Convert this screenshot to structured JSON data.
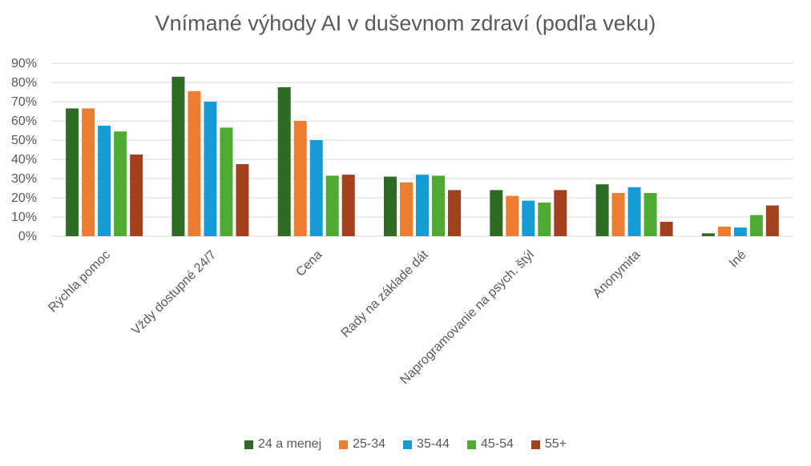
{
  "chart_data": {
    "type": "bar",
    "title": "Vnímané výhody AI v duševnom zdraví (podľa veku)",
    "categories": [
      "Rýchla pomoc",
      "Vždy dostupné 24/7",
      "Cena",
      "Rady na základe dát",
      "Naprogramovanie na psych. štýl",
      "Anonymita",
      "Iné"
    ],
    "y_ticks": [
      "0%",
      "10%",
      "20%",
      "30%",
      "40%",
      "50%",
      "60%",
      "70%",
      "80%",
      "90%"
    ],
    "ylim": [
      0,
      90
    ],
    "grid": true,
    "legend_position": "bottom",
    "series": [
      {
        "name": "24 a menej",
        "color": "#2e6b25",
        "values": [
          66.5,
          83,
          77.5,
          31,
          24,
          27,
          1.5
        ]
      },
      {
        "name": "25-34",
        "color": "#ed7d31",
        "values": [
          66.5,
          75.5,
          60,
          28,
          21,
          22.5,
          5
        ]
      },
      {
        "name": "35-44",
        "color": "#159bd6",
        "values": [
          57.5,
          70,
          50,
          32,
          18.5,
          25.5,
          4.5
        ]
      },
      {
        "name": "45-54",
        "color": "#4eaa33",
        "values": [
          54.5,
          56.5,
          31.5,
          31.5,
          17.5,
          22.5,
          11
        ]
      },
      {
        "name": "55+",
        "color": "#a3401e",
        "values": [
          42.5,
          37.5,
          32,
          24,
          24,
          7.5,
          16
        ]
      }
    ]
  }
}
